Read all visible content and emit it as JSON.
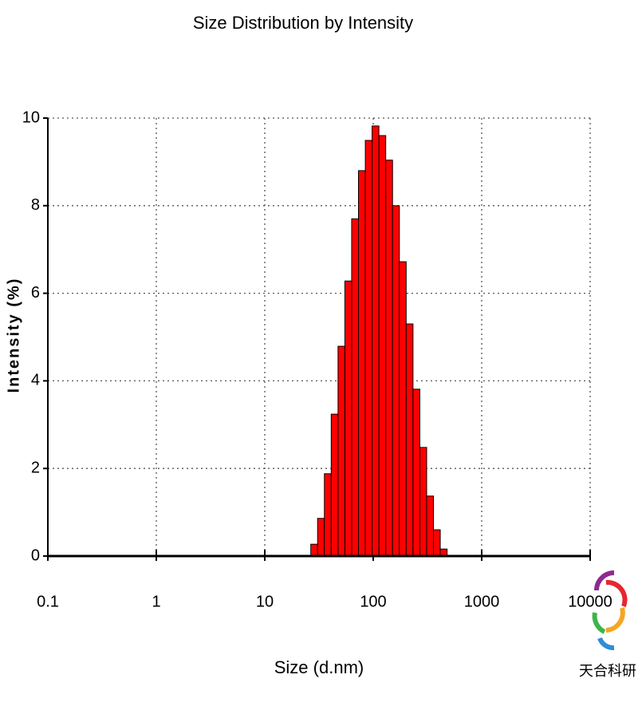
{
  "chart_data": {
    "type": "histogram",
    "title": "Size Distribution by Intensity",
    "x_label": "Size (d.nm)",
    "y_label": "Intensity (%)",
    "bins": [
      26.56,
      30.69,
      35.46,
      40.99,
      47.37,
      54.74,
      63.26,
      73.11,
      84.53,
      97.63,
      112.8,
      130.4,
      150.7,
      174.2,
      201.3,
      232.6,
      268.9,
      310.8,
      359.1,
      415.0,
      479.7
    ],
    "values": [
      0.27,
      0.86,
      1.88,
      3.24,
      4.79,
      6.28,
      7.7,
      8.8,
      9.49,
      9.82,
      9.6,
      9.04,
      8.0,
      6.72,
      5.3,
      3.81,
      2.48,
      1.37,
      0.6,
      0.16
    ],
    "color": "#ff0000",
    "xlim": [
      0.1,
      10000
    ],
    "xticks": [
      0.1,
      1,
      10,
      100,
      1000,
      10000
    ],
    "xscale": "log",
    "ylim": [
      0,
      10
    ],
    "yticks": [
      0,
      2,
      4,
      6,
      8,
      10
    ],
    "grid": true
  },
  "watermark": "天合科研"
}
